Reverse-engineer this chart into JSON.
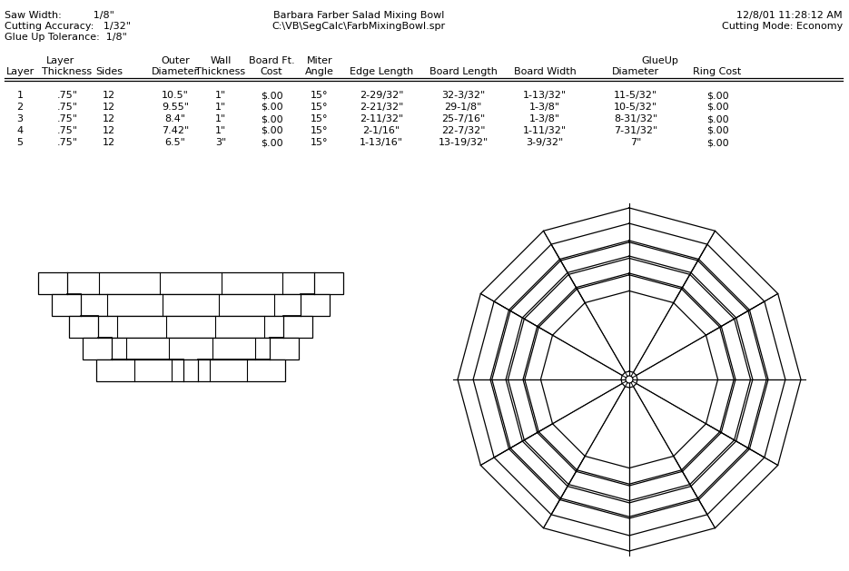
{
  "title": "Barbara Farber Salad Mixing Bowl",
  "filepath": "C:\\VB\\SegCalc\\FarbMixingBowl.spr",
  "date_time": "12/8/01 11:28:12 AM",
  "saw_width": "1/8\"",
  "cutting_accuracy": "1/32\"",
  "glue_up_tolerance": "1/8\"",
  "cutting_mode": "Economy",
  "rows": [
    [
      "1",
      ".75\"",
      "12",
      "10.5\"",
      "1\"",
      "$.00",
      "15°",
      "2-29/32\"",
      "32-3/32\"",
      "1-13/32\"",
      "11-5/32\"",
      "$.00"
    ],
    [
      "2",
      ".75\"",
      "12",
      "9.55\"",
      "1\"",
      "$.00",
      "15°",
      "2-21/32\"",
      "29-1/8\"",
      "1-3/8\"",
      "10-5/32\"",
      "$.00"
    ],
    [
      "3",
      ".75\"",
      "12",
      "8.4\"",
      "1\"",
      "$.00",
      "15°",
      "2-11/32\"",
      "25-7/16\"",
      "1-3/8\"",
      "8-31/32\"",
      "$.00"
    ],
    [
      "4",
      ".75\"",
      "12",
      "7.42\"",
      "1\"",
      "$.00",
      "15°",
      "2-1/16\"",
      "22-7/32\"",
      "1-11/32\"",
      "7-31/32\"",
      "$.00"
    ],
    [
      "5",
      ".75\"",
      "12",
      "6.5\"",
      "3\"",
      "$.00",
      "15°",
      "1-13/16\"",
      "13-19/32\"",
      "3-9/32\"",
      "7\"",
      "$.00"
    ]
  ],
  "bg_color": "#ffffff",
  "text_color": "#000000",
  "n_sides": 12,
  "layer_outer_diameters": [
    10.5,
    9.55,
    8.4,
    7.42,
    6.5
  ],
  "layer_thicknesses": [
    0.75,
    0.75,
    0.75,
    0.75,
    0.75
  ],
  "layer_wall_thicknesses": [
    1.0,
    1.0,
    1.0,
    1.0,
    3.0
  ]
}
